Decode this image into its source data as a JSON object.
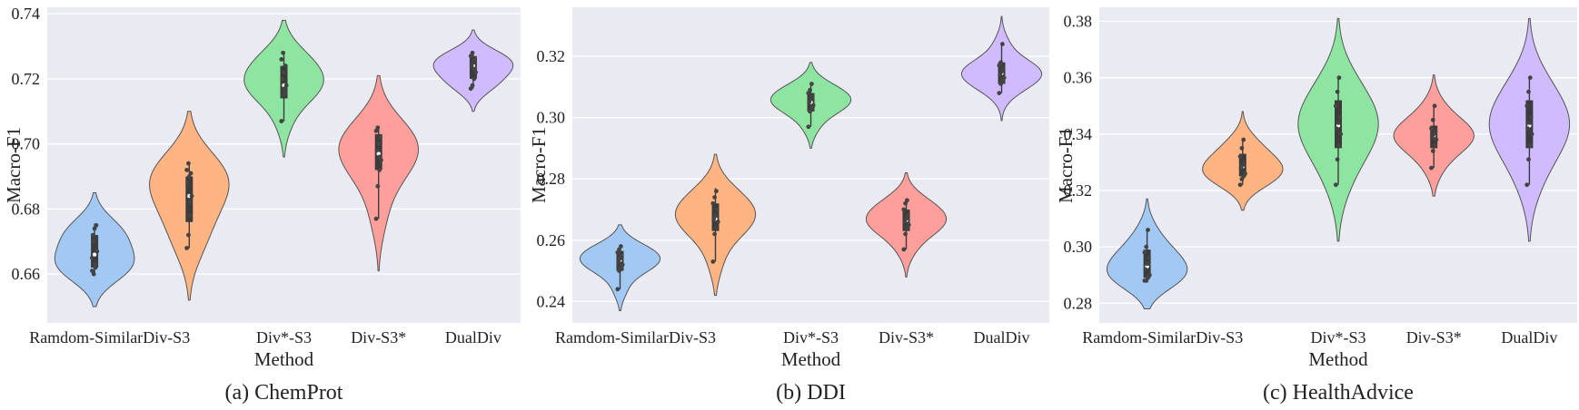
{
  "colors": {
    "plot_background": "#eaeaf2",
    "grid": "#ffffff",
    "box": "#3b3b3b",
    "violins": [
      "#a1c9f4",
      "#ffb482",
      "#8de5a1",
      "#ff9f9b",
      "#d0bbff"
    ]
  },
  "chart_data": [
    {
      "type": "violin",
      "caption": "(a) ChemProt",
      "xlabel": "Method",
      "ylabel": "Macro-F1",
      "categories": [
        "Ramdom-Similar",
        "Div-S3",
        "Div*-S3",
        "Div-S3*",
        "DualDiv"
      ],
      "ylim": [
        0.645,
        0.742
      ],
      "yticks": [
        0.66,
        0.68,
        0.7,
        0.72,
        0.74
      ],
      "ytick_labels": [
        "0.66",
        "0.68",
        "0.70",
        "0.72",
        "0.74"
      ],
      "grid": true,
      "series": [
        {
          "points": [
            0.661,
            0.66,
            0.662,
            0.667,
            0.672,
            0.674,
            0.675,
            0.665,
            0.67,
            0.663
          ],
          "box": [
            0.6605,
            0.662,
            0.666,
            0.672,
            0.6755
          ],
          "range": [
            0.65,
            0.685
          ]
        },
        {
          "points": [
            0.668,
            0.672,
            0.678,
            0.684,
            0.688,
            0.69,
            0.691,
            0.692,
            0.694,
            0.682
          ],
          "box": [
            0.668,
            0.676,
            0.684,
            0.69,
            0.694
          ],
          "range": [
            0.652,
            0.71
          ]
        },
        {
          "points": [
            0.707,
            0.715,
            0.716,
            0.718,
            0.72,
            0.722,
            0.724,
            0.726,
            0.728,
            0.717
          ],
          "box": [
            0.707,
            0.714,
            0.718,
            0.724,
            0.728
          ],
          "range": [
            0.696,
            0.738
          ]
        },
        {
          "points": [
            0.677,
            0.687,
            0.692,
            0.695,
            0.698,
            0.7,
            0.702,
            0.704,
            0.705,
            0.696
          ],
          "box": [
            0.677,
            0.692,
            0.697,
            0.703,
            0.705
          ],
          "range": [
            0.661,
            0.721
          ]
        },
        {
          "points": [
            0.717,
            0.718,
            0.72,
            0.722,
            0.724,
            0.725,
            0.726,
            0.727,
            0.728,
            0.723
          ],
          "box": [
            0.717,
            0.72,
            0.724,
            0.727,
            0.728
          ],
          "range": [
            0.71,
            0.735
          ]
        }
      ]
    },
    {
      "type": "violin",
      "caption": "(b) DDI",
      "xlabel": "Method",
      "ylabel": "Macro-F1",
      "categories": [
        "Ramdom-Similar",
        "Div-S3",
        "Div*-S3",
        "Div-S3*",
        "DualDiv"
      ],
      "ylim": [
        0.233,
        0.336
      ],
      "yticks": [
        0.24,
        0.26,
        0.28,
        0.3,
        0.32
      ],
      "ytick_labels": [
        "0.24",
        "0.26",
        "0.28",
        "0.30",
        "0.32"
      ],
      "grid": true,
      "series": [
        {
          "points": [
            0.244,
            0.25,
            0.251,
            0.252,
            0.253,
            0.254,
            0.255,
            0.256,
            0.257,
            0.258
          ],
          "box": [
            0.244,
            0.25,
            0.2535,
            0.2565,
            0.258
          ],
          "range": [
            0.237,
            0.265
          ]
        },
        {
          "points": [
            0.253,
            0.262,
            0.264,
            0.266,
            0.267,
            0.268,
            0.27,
            0.272,
            0.274,
            0.276
          ],
          "box": [
            0.253,
            0.263,
            0.267,
            0.272,
            0.277
          ],
          "range": [
            0.242,
            0.288
          ]
        },
        {
          "points": [
            0.297,
            0.302,
            0.303,
            0.304,
            0.305,
            0.306,
            0.307,
            0.308,
            0.309,
            0.311
          ],
          "box": [
            0.297,
            0.302,
            0.305,
            0.308,
            0.311
          ],
          "range": [
            0.29,
            0.318
          ]
        },
        {
          "points": [
            0.257,
            0.262,
            0.264,
            0.265,
            0.266,
            0.267,
            0.268,
            0.27,
            0.272,
            0.273
          ],
          "box": [
            0.257,
            0.263,
            0.2665,
            0.27,
            0.2735
          ],
          "range": [
            0.248,
            0.282
          ]
        },
        {
          "points": [
            0.308,
            0.311,
            0.312,
            0.313,
            0.314,
            0.315,
            0.316,
            0.317,
            0.318,
            0.324
          ],
          "box": [
            0.308,
            0.311,
            0.3145,
            0.318,
            0.3245
          ],
          "range": [
            0.299,
            0.333
          ]
        }
      ]
    },
    {
      "type": "violin",
      "caption": "(c) HealthAdvice",
      "xlabel": "Method",
      "ylabel": "Macro-F1",
      "categories": [
        "Ramdom-Similar",
        "Div-S3",
        "Div*-S3",
        "Div-S3*",
        "DualDiv"
      ],
      "ylim": [
        0.273,
        0.385
      ],
      "yticks": [
        0.28,
        0.3,
        0.32,
        0.34,
        0.36,
        0.38
      ],
      "ytick_labels": [
        "0.28",
        "0.30",
        "0.32",
        "0.34",
        "0.36",
        "0.38"
      ],
      "grid": true,
      "series": [
        {
          "points": [
            0.288,
            0.288,
            0.289,
            0.29,
            0.292,
            0.294,
            0.296,
            0.298,
            0.3,
            0.306
          ],
          "box": [
            0.288,
            0.289,
            0.293,
            0.299,
            0.306
          ],
          "range": [
            0.278,
            0.317
          ]
        },
        {
          "points": [
            0.322,
            0.324,
            0.325,
            0.326,
            0.328,
            0.329,
            0.33,
            0.332,
            0.335,
            0.338
          ],
          "box": [
            0.322,
            0.325,
            0.3285,
            0.333,
            0.338
          ],
          "range": [
            0.313,
            0.348
          ]
        },
        {
          "points": [
            0.322,
            0.331,
            0.336,
            0.34,
            0.342,
            0.344,
            0.346,
            0.35,
            0.355,
            0.36
          ],
          "box": [
            0.322,
            0.335,
            0.343,
            0.352,
            0.36
          ],
          "range": [
            0.302,
            0.381
          ]
        },
        {
          "points": [
            0.328,
            0.334,
            0.336,
            0.338,
            0.339,
            0.34,
            0.341,
            0.342,
            0.345,
            0.35
          ],
          "box": [
            0.328,
            0.335,
            0.3395,
            0.343,
            0.35
          ],
          "range": [
            0.318,
            0.361
          ]
        },
        {
          "points": [
            0.322,
            0.331,
            0.336,
            0.34,
            0.342,
            0.344,
            0.346,
            0.35,
            0.355,
            0.36
          ],
          "box": [
            0.322,
            0.335,
            0.343,
            0.352,
            0.36
          ],
          "range": [
            0.302,
            0.381
          ]
        }
      ]
    }
  ]
}
